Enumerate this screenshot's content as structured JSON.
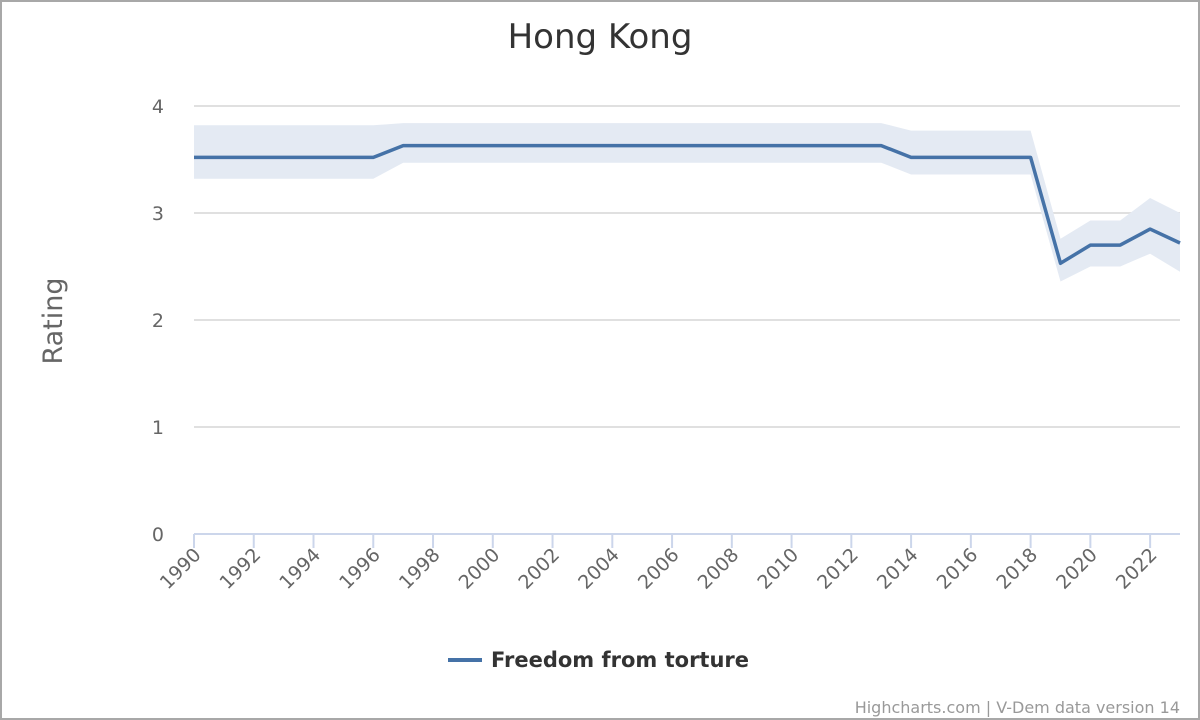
{
  "chart_data": {
    "type": "line",
    "title": "Hong Kong",
    "ylabel": "Rating",
    "xlabel": "",
    "ylim": [
      0,
      4
    ],
    "xlim": [
      1990,
      2023
    ],
    "yticks": [
      0,
      1,
      2,
      3,
      4
    ],
    "xticks": [
      1990,
      1992,
      1994,
      1996,
      1998,
      2000,
      2002,
      2004,
      2006,
      2008,
      2010,
      2012,
      2014,
      2016,
      2018,
      2020,
      2022
    ],
    "grid": true,
    "legend_position": "bottom-center",
    "series": [
      {
        "name": "Freedom from torture",
        "color": "#4572a7",
        "band_color": "#e4eaf3",
        "x": [
          1990,
          1991,
          1992,
          1993,
          1994,
          1995,
          1996,
          1997,
          1998,
          1999,
          2000,
          2001,
          2002,
          2003,
          2004,
          2005,
          2006,
          2007,
          2008,
          2009,
          2010,
          2011,
          2012,
          2013,
          2014,
          2015,
          2016,
          2017,
          2018,
          2019,
          2020,
          2021,
          2022,
          2023
        ],
        "values": [
          3.52,
          3.52,
          3.52,
          3.52,
          3.52,
          3.52,
          3.52,
          3.63,
          3.63,
          3.63,
          3.63,
          3.63,
          3.63,
          3.63,
          3.63,
          3.63,
          3.63,
          3.63,
          3.63,
          3.63,
          3.63,
          3.63,
          3.63,
          3.63,
          3.52,
          3.52,
          3.52,
          3.52,
          3.52,
          2.53,
          2.7,
          2.7,
          2.85,
          2.72
        ],
        "lower": [
          3.32,
          3.32,
          3.32,
          3.32,
          3.32,
          3.32,
          3.32,
          3.47,
          3.47,
          3.47,
          3.47,
          3.47,
          3.47,
          3.47,
          3.47,
          3.47,
          3.47,
          3.47,
          3.47,
          3.47,
          3.47,
          3.47,
          3.47,
          3.47,
          3.36,
          3.36,
          3.36,
          3.36,
          3.36,
          2.36,
          2.5,
          2.5,
          2.62,
          2.45
        ],
        "upper": [
          3.82,
          3.82,
          3.82,
          3.82,
          3.82,
          3.82,
          3.82,
          3.84,
          3.84,
          3.84,
          3.84,
          3.84,
          3.84,
          3.84,
          3.84,
          3.84,
          3.84,
          3.84,
          3.84,
          3.84,
          3.84,
          3.84,
          3.84,
          3.84,
          3.77,
          3.77,
          3.77,
          3.77,
          3.77,
          2.76,
          2.93,
          2.93,
          3.14,
          3.0
        ]
      }
    ]
  },
  "credits": "Highcharts.com | V-Dem data version 14"
}
